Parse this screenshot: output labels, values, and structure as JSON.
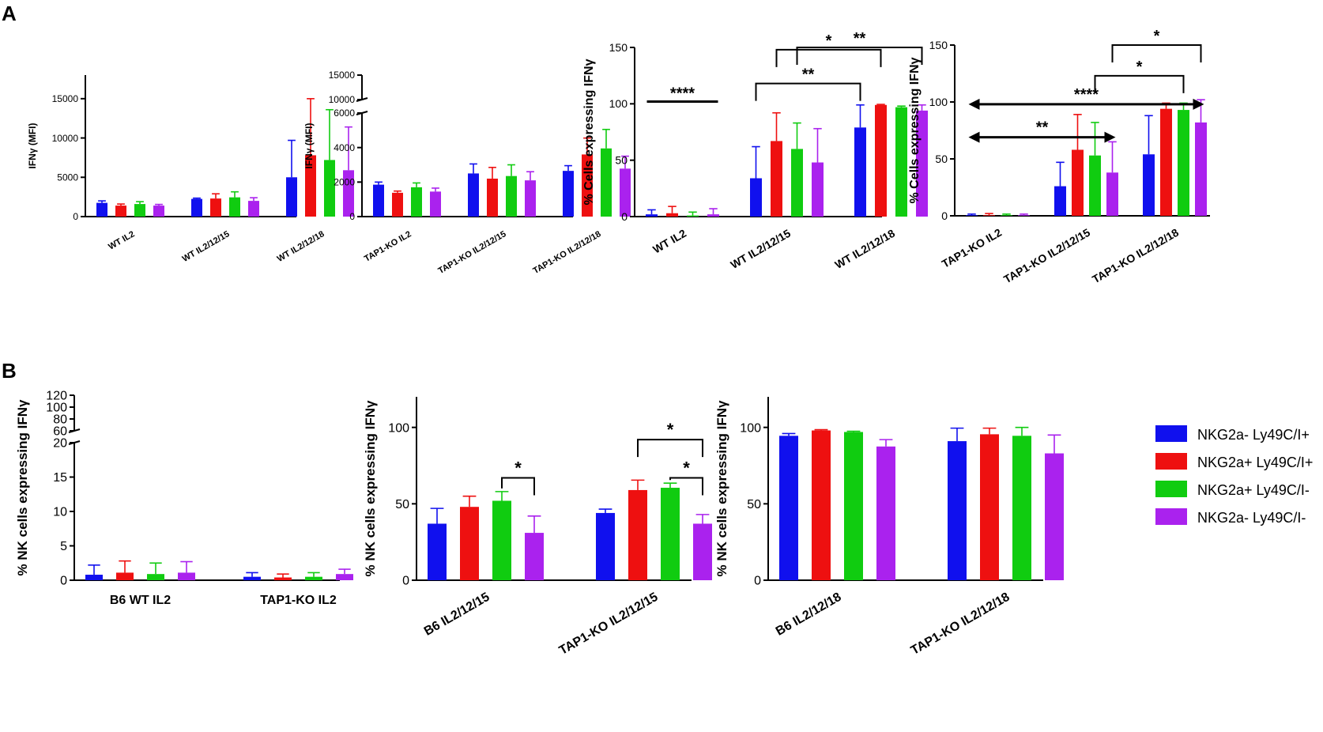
{
  "panel_labels": {
    "a": "A",
    "b": "B"
  },
  "colors": {
    "blue": "#1010ee",
    "red": "#ee1010",
    "green": "#10cc10",
    "purple": "#aa22ee"
  },
  "legend": {
    "items": [
      {
        "label": "NKG2a- Ly49C/I+",
        "color": "#1010ee"
      },
      {
        "label": "NKG2a+ Ly49C/I+",
        "color": "#ee1010"
      },
      {
        "label": "NKG2a+ Ly49C/I-",
        "color": "#10cc10"
      },
      {
        "label": "NKG2a- Ly49C/I-",
        "color": "#aa22ee"
      }
    ]
  },
  "chart_data": [
    {
      "id": "a1",
      "type": "bar",
      "ylabel": "IFNγ (MFI)",
      "ylim": [
        0,
        18000
      ],
      "ticks": [
        {
          "v": 0,
          "label": "0"
        },
        {
          "v": 5000,
          "label": "5000"
        },
        {
          "v": 10000,
          "label": "10000"
        },
        {
          "v": 15000,
          "label": "15000"
        }
      ],
      "categories": [
        "WT IL2",
        "WT IL2/12/15",
        "WT IL2/12/18"
      ],
      "series": [
        {
          "name": "NKG2a- Ly49C/I+",
          "values": [
            1750,
            2250,
            5000
          ],
          "err": [
            250,
            100,
            4700
          ]
        },
        {
          "name": "NKG2a+ Ly49C/I+",
          "values": [
            1400,
            2300,
            7800
          ],
          "err": [
            200,
            600,
            7200
          ]
        },
        {
          "name": "NKG2a+ Ly49C/I-",
          "values": [
            1600,
            2450,
            7200
          ],
          "err": [
            300,
            700,
            6400
          ]
        },
        {
          "name": "NKG2a- Ly49C/I-",
          "values": [
            1400,
            2000,
            5900
          ],
          "err": [
            150,
            400,
            5500
          ]
        }
      ],
      "annotations": []
    },
    {
      "id": "a2",
      "type": "bar",
      "ylabel": "IFNγ (MFI)",
      "ylim": [
        0,
        6000
      ],
      "ylim_upper": [
        10000,
        15000
      ],
      "ticks": [
        {
          "v": 0,
          "label": "0"
        },
        {
          "v": 2000,
          "label": "2000"
        },
        {
          "v": 4000,
          "label": "4000"
        },
        {
          "v": 6000,
          "label": "6000"
        }
      ],
      "upper_ticks": [
        {
          "v": 10000,
          "label": "10000"
        },
        {
          "v": 15000,
          "label": "15000"
        }
      ],
      "categories": [
        "TAP1-KO IL2",
        "TAP1-KO IL2/12/15",
        "TAP1-KO IL2/12/18"
      ],
      "series": [
        {
          "name": "NKG2a- Ly49C/I+",
          "values": [
            1850,
            2500,
            2650
          ],
          "err": [
            150,
            550,
            300
          ]
        },
        {
          "name": "NKG2a+ Ly49C/I+",
          "values": [
            1380,
            2200,
            3600
          ],
          "err": [
            100,
            650,
            950
          ]
        },
        {
          "name": "NKG2a+ Ly49C/I-",
          "values": [
            1700,
            2350,
            3950
          ],
          "err": [
            250,
            650,
            1100
          ]
        },
        {
          "name": "NKG2a- Ly49C/I-",
          "values": [
            1450,
            2100,
            2780
          ],
          "err": [
            200,
            500,
            720
          ]
        }
      ],
      "annotations": []
    },
    {
      "id": "a3",
      "type": "bar",
      "ylabel": "% Cells expressing IFNγ",
      "ylim": [
        0,
        150
      ],
      "ticks": [
        {
          "v": 0,
          "label": "0"
        },
        {
          "v": 50,
          "label": "50"
        },
        {
          "v": 100,
          "label": "100"
        },
        {
          "v": 150,
          "label": "150"
        }
      ],
      "categories": [
        "WT IL2",
        "WT IL2/12/15",
        "WT IL2/12/18"
      ],
      "series": [
        {
          "name": "NKG2a- Ly49C/I+",
          "values": [
            2,
            34,
            79
          ],
          "err": [
            4,
            28,
            20
          ]
        },
        {
          "name": "NKG2a+ Ly49C/I+",
          "values": [
            3,
            67,
            99
          ],
          "err": [
            6,
            25,
            0.5
          ]
        },
        {
          "name": "NKG2a+ Ly49C/I-",
          "values": [
            1,
            60,
            97
          ],
          "err": [
            3,
            23,
            1
          ]
        },
        {
          "name": "NKG2a- Ly49C/I-",
          "values": [
            2,
            48,
            94
          ],
          "err": [
            5,
            30,
            5
          ]
        }
      ],
      "annotations": [
        {
          "kind": "bar",
          "x1": [
            0,
            0
          ],
          "x2": [
            0,
            3
          ],
          "y": 102,
          "label": "****"
        },
        {
          "kind": "bracket",
          "x1": [
            1,
            0
          ],
          "x2": [
            2,
            0
          ],
          "y": 118,
          "label": "**"
        },
        {
          "kind": "bracket",
          "x1": [
            1,
            1
          ],
          "x2": [
            2,
            1
          ],
          "y": 148,
          "label": "*"
        },
        {
          "kind": "bracket",
          "x1": [
            1,
            2
          ],
          "x2": [
            2,
            3
          ],
          "y": 178,
          "label": "**"
        }
      ]
    },
    {
      "id": "a4",
      "type": "bar",
      "ylabel": "% Cells expressing IFNγ",
      "ylim": [
        0,
        150
      ],
      "ticks": [
        {
          "v": 0,
          "label": "0"
        },
        {
          "v": 50,
          "label": "50"
        },
        {
          "v": 100,
          "label": "100"
        },
        {
          "v": 150,
          "label": "150"
        }
      ],
      "categories": [
        "TAP1-KO IL2",
        "TAP1-KO IL2/12/15",
        "TAP1-KO IL2/12/18"
      ],
      "series": [
        {
          "name": "NKG2a- Ly49C/I+",
          "values": [
            0.5,
            26,
            54
          ],
          "err": [
            1,
            21,
            34
          ]
        },
        {
          "name": "NKG2a+ Ly49C/I+",
          "values": [
            0.5,
            58,
            94
          ],
          "err": [
            1.5,
            31,
            5
          ]
        },
        {
          "name": "NKG2a+ Ly49C/I-",
          "values": [
            0.5,
            53,
            93
          ],
          "err": [
            1,
            29,
            6
          ]
        },
        {
          "name": "NKG2a- Ly49C/I-",
          "values": [
            0.5,
            38,
            82
          ],
          "err": [
            1,
            27,
            20
          ]
        }
      ],
      "annotations": [
        {
          "kind": "arrow",
          "x1": [
            0,
            0
          ],
          "x2": [
            1,
            3
          ],
          "y": 69,
          "label": "**"
        },
        {
          "kind": "arrow",
          "x1": [
            0,
            0
          ],
          "x2": [
            2,
            3
          ],
          "y": 98,
          "label": "****"
        },
        {
          "kind": "bracket",
          "x1": [
            1,
            2
          ],
          "x2": [
            2,
            2
          ],
          "y": 123,
          "label": "*"
        },
        {
          "kind": "bracket",
          "x1": [
            1,
            3
          ],
          "x2": [
            2,
            3
          ],
          "y": 153,
          "label": "*"
        }
      ]
    },
    {
      "id": "b1",
      "type": "bar",
      "ylabel": "% NK cells expressing IFNγ",
      "ylim": [
        0,
        20
      ],
      "ylim_upper": [
        60,
        120
      ],
      "ticks": [
        {
          "v": 0,
          "label": "0"
        },
        {
          "v": 5,
          "label": "5"
        },
        {
          "v": 10,
          "label": "10"
        },
        {
          "v": 15,
          "label": "15"
        },
        {
          "v": 20,
          "label": "20"
        }
      ],
      "upper_ticks": [
        {
          "v": 60,
          "label": "60"
        },
        {
          "v": 80,
          "label": "80"
        },
        {
          "v": 100,
          "label": "100"
        },
        {
          "v": 120,
          "label": "120"
        }
      ],
      "categories": [
        "B6 WT IL2",
        "TAP1-KO IL2"
      ],
      "series": [
        {
          "name": "NKG2a- Ly49C/I+",
          "values": [
            0.8,
            0.5
          ],
          "err": [
            1.4,
            0.6
          ]
        },
        {
          "name": "NKG2a+ Ly49C/I+",
          "values": [
            1.1,
            0.4
          ],
          "err": [
            1.7,
            0.5
          ]
        },
        {
          "name": "NKG2a+ Ly49C/I-",
          "values": [
            0.9,
            0.5
          ],
          "err": [
            1.6,
            0.6
          ]
        },
        {
          "name": "NKG2a- Ly49C/I-",
          "values": [
            1.1,
            0.9
          ],
          "err": [
            1.6,
            0.7
          ]
        }
      ],
      "annotations": []
    },
    {
      "id": "b2",
      "type": "bar",
      "ylabel": "% NK cells expressing IFNγ",
      "ylim": [
        0,
        120
      ],
      "ticks": [
        {
          "v": 0,
          "label": "0"
        },
        {
          "v": 50,
          "label": "50"
        },
        {
          "v": 100,
          "label": "100"
        }
      ],
      "categories": [
        "B6 IL2/12/15",
        "TAP1-KO IL2/12/15"
      ],
      "series": [
        {
          "name": "NKG2a- Ly49C/I+",
          "values": [
            37,
            44
          ],
          "err": [
            10,
            2.5
          ]
        },
        {
          "name": "NKG2a+ Ly49C/I+",
          "values": [
            48,
            59
          ],
          "err": [
            7,
            6.5
          ]
        },
        {
          "name": "NKG2a+ Ly49C/I-",
          "values": [
            52,
            60.5
          ],
          "err": [
            6,
            3
          ]
        },
        {
          "name": "NKG2a- Ly49C/I-",
          "values": [
            31,
            37
          ],
          "err": [
            11,
            6
          ]
        }
      ],
      "annotations": [
        {
          "kind": "bracket",
          "x1": [
            0,
            2
          ],
          "x2": [
            0,
            3
          ],
          "y": 67,
          "label": "*"
        },
        {
          "kind": "bracket",
          "x1": [
            1,
            2
          ],
          "x2": [
            1,
            3
          ],
          "y": 67,
          "label": "*"
        },
        {
          "kind": "bracket",
          "x1": [
            1,
            1
          ],
          "x2": [
            1,
            3
          ],
          "y": 92,
          "label": "*"
        }
      ]
    },
    {
      "id": "b3",
      "type": "bar",
      "ylabel": "% NK cells expressing IFNγ",
      "ylim": [
        0,
        120
      ],
      "ticks": [
        {
          "v": 0,
          "label": "0"
        },
        {
          "v": 50,
          "label": "50"
        },
        {
          "v": 100,
          "label": "100"
        }
      ],
      "categories": [
        "B6 IL2/12/18",
        "TAP1-KO IL2/12/18"
      ],
      "series": [
        {
          "name": "NKG2a- Ly49C/I+",
          "values": [
            94.5,
            91
          ],
          "err": [
            1.5,
            8.5
          ]
        },
        {
          "name": "NKG2a+ Ly49C/I+",
          "values": [
            98,
            95.5
          ],
          "err": [
            0.5,
            4
          ]
        },
        {
          "name": "NKG2a+ Ly49C/I-",
          "values": [
            97,
            94.5
          ],
          "err": [
            0.5,
            5.5
          ]
        },
        {
          "name": "NKG2a- Ly49C/I-",
          "values": [
            87.5,
            83
          ],
          "err": [
            4.5,
            12
          ]
        }
      ],
      "annotations": []
    }
  ]
}
